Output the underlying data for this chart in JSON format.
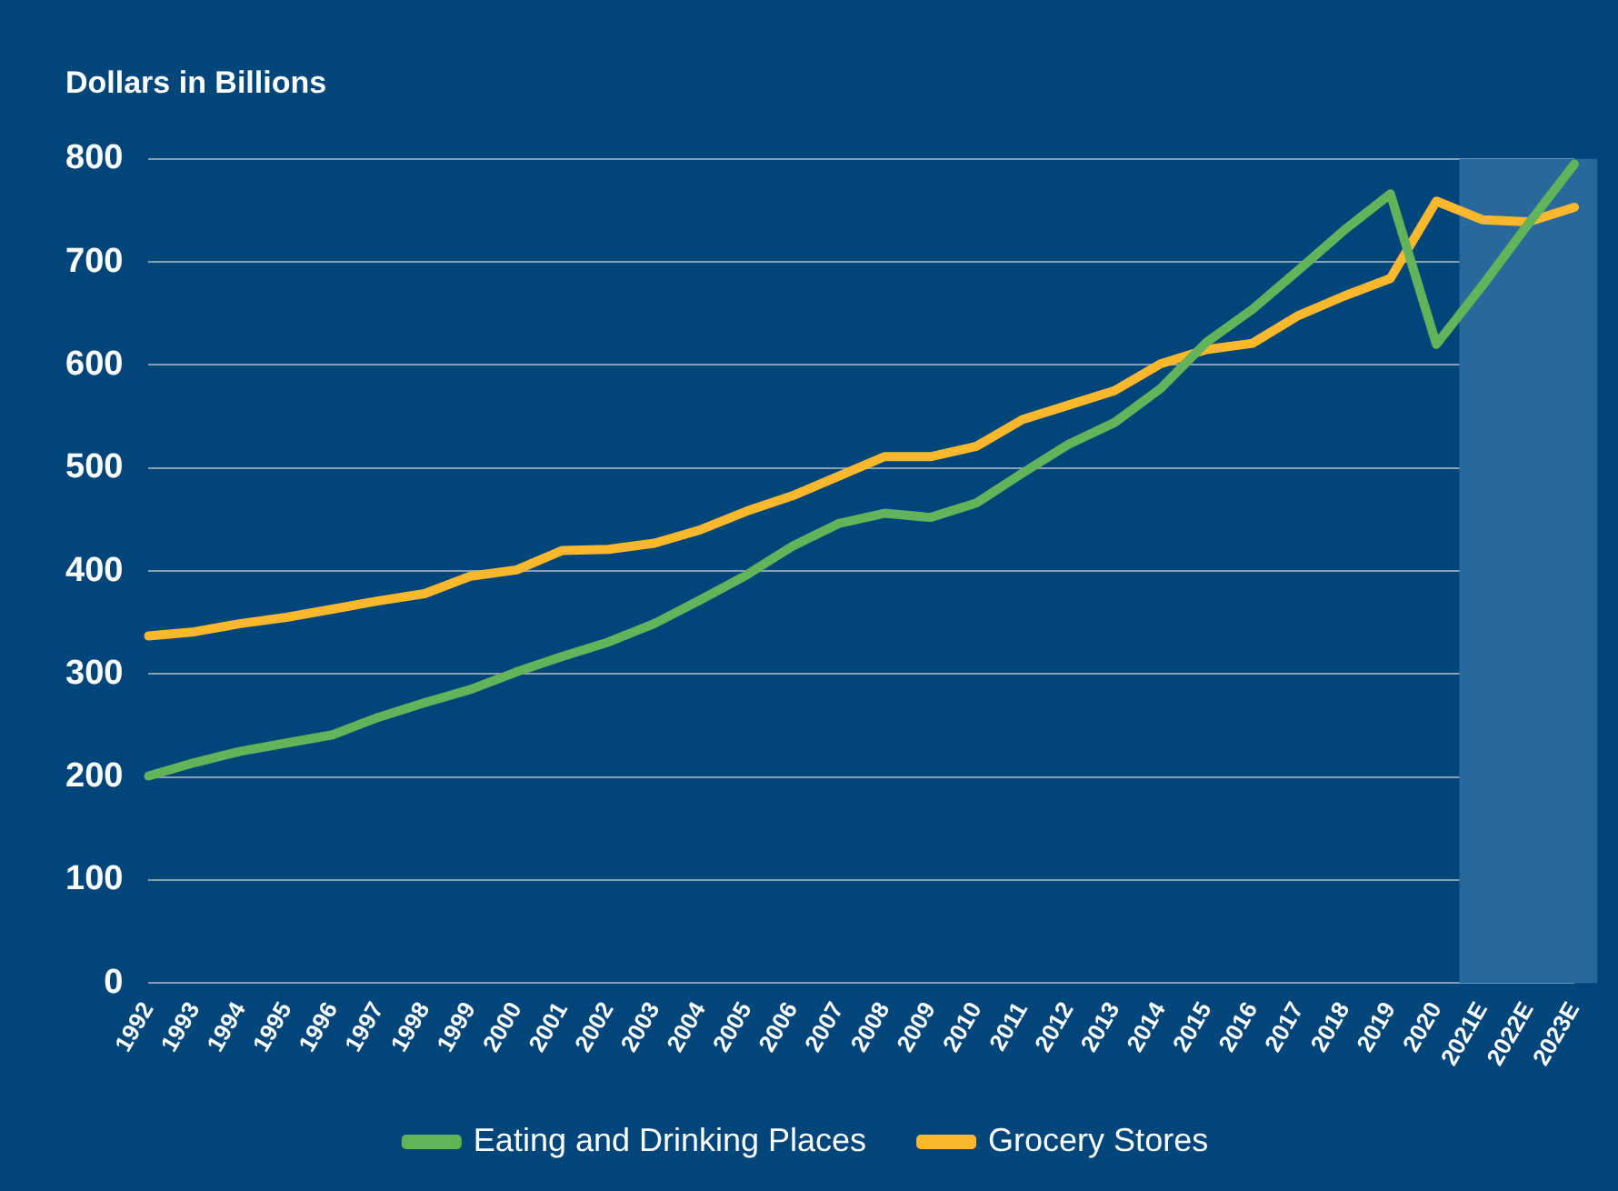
{
  "chart_data": {
    "type": "line",
    "ylabel": "Dollars in Billions",
    "categories": [
      "1992",
      "1993",
      "1994",
      "1995",
      "1996",
      "1997",
      "1998",
      "1999",
      "2000",
      "2001",
      "2002",
      "2003",
      "2004",
      "2005",
      "2006",
      "2007",
      "2008",
      "2009",
      "2010",
      "2011",
      "2012",
      "2013",
      "2014",
      "2015",
      "2016",
      "2017",
      "2018",
      "2019",
      "2020",
      "2021E",
      "2022E",
      "2023E"
    ],
    "series": [
      {
        "name": "Eating and Drinking Places",
        "color": "#62b35a",
        "values": [
          201,
          214,
          225,
          233,
          241,
          258,
          272,
          285,
          302,
          317,
          331,
          349,
          372,
          396,
          424,
          446,
          456,
          452,
          466,
          495,
          523,
          544,
          577,
          622,
          654,
          692,
          731,
          766,
          620,
          677,
          737,
          795
        ]
      },
      {
        "name": "Grocery Stores",
        "color": "#fbb82d",
        "values": [
          337,
          341,
          349,
          355,
          363,
          371,
          378,
          395,
          401,
          420,
          421,
          427,
          440,
          458,
          473,
          492,
          511,
          511,
          521,
          547,
          561,
          575,
          601,
          615,
          621,
          648,
          667,
          684,
          759,
          741,
          739,
          753
        ]
      }
    ],
    "ylim": [
      0,
      800
    ],
    "yticks": [
      0,
      100,
      200,
      300,
      400,
      500,
      600,
      700,
      800
    ],
    "grid": "y",
    "legend": "bottom",
    "marker": "none",
    "line_style": "solid",
    "bands": [
      {
        "axis": "x",
        "from": "2021E",
        "to": "2023E",
        "color": "#27699a"
      }
    ]
  }
}
